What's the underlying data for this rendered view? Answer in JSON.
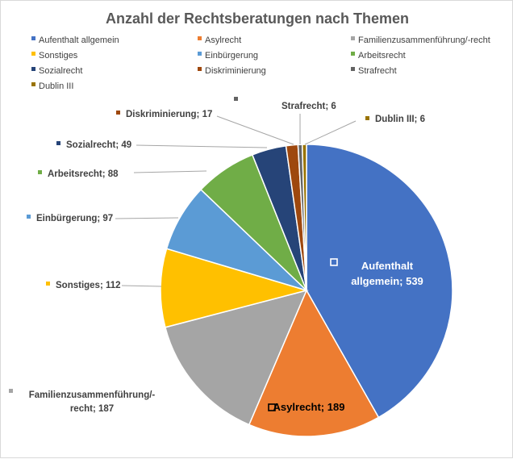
{
  "chart_data": {
    "type": "pie",
    "title": "Anzahl der Rechtsberatungen nach Themen",
    "categories": [
      "Aufenthalt allgemein",
      "Asylrecht",
      "Familienzusammenführung/-recht",
      "Sonstiges",
      "Einbürgerung",
      "Arbeitsrecht",
      "Sozialrecht",
      "Diskriminierung",
      "Strafrecht",
      "Dublin III"
    ],
    "values": [
      539,
      189,
      187,
      112,
      97,
      88,
      49,
      17,
      6,
      6
    ],
    "colors": [
      "#4472c4",
      "#ed7d31",
      "#a5a5a5",
      "#ffc000",
      "#5b9bd5",
      "#70ad47",
      "#264478",
      "#9e480e",
      "#636363",
      "#997300"
    ],
    "data_labels": [
      "Aufenthalt allgemein; 539",
      "Asylrecht; 189",
      "Familienzusammenführung/-recht; 187",
      "Sonstiges; 112",
      "Einbürgerung; 97",
      "Arbeitsrecht; 88",
      "Sozialrecht; 49",
      "Diskriminierung; 17",
      "Strafrecht; 6",
      "Dublin III; 6"
    ],
    "legend_position": "top"
  }
}
